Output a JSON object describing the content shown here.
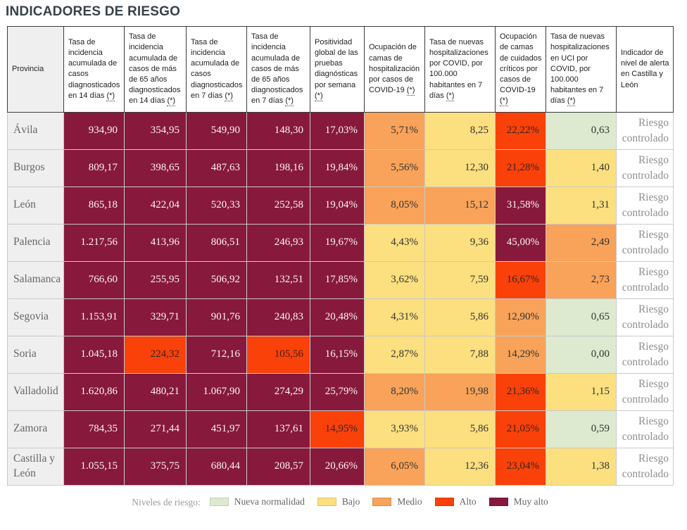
{
  "title": "INDICADORES DE RIESGO",
  "colors": {
    "nueva_normalidad": "#ddead0",
    "bajo": "#fcdf7e",
    "medio": "#f8a359",
    "alto": "#f94109",
    "muy_alto": "#87193c",
    "title_text": "#37424b",
    "province_text": "#666666",
    "alert_text": "#8f8f8f"
  },
  "chart_data": {
    "type": "table",
    "title": "INDICADORES DE RIESGO",
    "footnote_mark": "(*)",
    "columns": [
      {
        "label": "Provincia",
        "footnote": false
      },
      {
        "label": "Tasa de incidencia acumulada de casos diagnosticados en 14 días",
        "footnote": true
      },
      {
        "label": "Tasa de incidencia acumulada de casos de más de 65 años diagnosticados en 14 días",
        "footnote": true
      },
      {
        "label": "Tasa de incidencia acumulada de casos diagnosticados en 7 días",
        "footnote": true
      },
      {
        "label": "Tasa de incidencia acumulada de casos de más de 65 años diagnosticados en 7 días",
        "footnote": true
      },
      {
        "label": "Positividad global de las pruebas diagnósticas por semana",
        "footnote": true
      },
      {
        "label": "Ocupación de camas de hospitalización por casos de COVID-19",
        "footnote": true
      },
      {
        "label": "Tasa de nuevas hospitalizaciones por COVID, por 100.000 habitantes en 7 días",
        "footnote": true
      },
      {
        "label": "Ocupación de camas de cuidados críticos por casos de COVID-19",
        "footnote": true
      },
      {
        "label": "Tasa de nuevas hospitalizaciones en UCI por COVID, por 100.000 habitantes en 7 días",
        "footnote": true
      },
      {
        "label": "Indicador de nivel de alerta en Castilla y León",
        "footnote": false
      }
    ],
    "rows": [
      {
        "province": "Ávila",
        "values": [
          [
            "934,90",
            "muy_alto"
          ],
          [
            "354,95",
            "muy_alto"
          ],
          [
            "549,90",
            "muy_alto"
          ],
          [
            "148,30",
            "muy_alto"
          ],
          [
            "17,03%",
            "muy_alto"
          ],
          [
            "5,71%",
            "medio"
          ],
          [
            "8,25",
            "bajo"
          ],
          [
            "22,22%",
            "alto"
          ],
          [
            "0,63",
            "nueva_normalidad"
          ]
        ],
        "alert": "Riesgo controlado"
      },
      {
        "province": "Burgos",
        "values": [
          [
            "809,17",
            "muy_alto"
          ],
          [
            "398,65",
            "muy_alto"
          ],
          [
            "487,63",
            "muy_alto"
          ],
          [
            "198,16",
            "muy_alto"
          ],
          [
            "19,84%",
            "muy_alto"
          ],
          [
            "5,56%",
            "medio"
          ],
          [
            "12,30",
            "bajo"
          ],
          [
            "21,28%",
            "alto"
          ],
          [
            "1,40",
            "bajo"
          ]
        ],
        "alert": "Riesgo controlado"
      },
      {
        "province": "León",
        "values": [
          [
            "865,18",
            "muy_alto"
          ],
          [
            "422,04",
            "muy_alto"
          ],
          [
            "520,33",
            "muy_alto"
          ],
          [
            "252,58",
            "muy_alto"
          ],
          [
            "19,04%",
            "muy_alto"
          ],
          [
            "8,05%",
            "medio"
          ],
          [
            "15,12",
            "medio"
          ],
          [
            "31,58%",
            "muy_alto"
          ],
          [
            "1,31",
            "bajo"
          ]
        ],
        "alert": "Riesgo controlado"
      },
      {
        "province": "Palencia",
        "values": [
          [
            "1.217,56",
            "muy_alto"
          ],
          [
            "413,96",
            "muy_alto"
          ],
          [
            "806,51",
            "muy_alto"
          ],
          [
            "246,93",
            "muy_alto"
          ],
          [
            "19,67%",
            "muy_alto"
          ],
          [
            "4,43%",
            "bajo"
          ],
          [
            "9,36",
            "bajo"
          ],
          [
            "45,00%",
            "muy_alto"
          ],
          [
            "2,49",
            "medio"
          ]
        ],
        "alert": "Riesgo controlado"
      },
      {
        "province": "Salamanca",
        "values": [
          [
            "766,60",
            "muy_alto"
          ],
          [
            "255,95",
            "muy_alto"
          ],
          [
            "506,92",
            "muy_alto"
          ],
          [
            "132,51",
            "muy_alto"
          ],
          [
            "17,85%",
            "muy_alto"
          ],
          [
            "3,62%",
            "bajo"
          ],
          [
            "7,59",
            "bajo"
          ],
          [
            "16,67%",
            "alto"
          ],
          [
            "2,73",
            "medio"
          ]
        ],
        "alert": "Riesgo controlado"
      },
      {
        "province": "Segovia",
        "values": [
          [
            "1.153,91",
            "muy_alto"
          ],
          [
            "329,71",
            "muy_alto"
          ],
          [
            "901,76",
            "muy_alto"
          ],
          [
            "240,83",
            "muy_alto"
          ],
          [
            "20,48%",
            "muy_alto"
          ],
          [
            "4,31%",
            "bajo"
          ],
          [
            "5,86",
            "bajo"
          ],
          [
            "12,90%",
            "medio"
          ],
          [
            "0,65",
            "nueva_normalidad"
          ]
        ],
        "alert": "Riesgo controlado"
      },
      {
        "province": "Soria",
        "values": [
          [
            "1.045,18",
            "muy_alto"
          ],
          [
            "224,32",
            "alto"
          ],
          [
            "712,16",
            "muy_alto"
          ],
          [
            "105,56",
            "alto"
          ],
          [
            "16,15%",
            "muy_alto"
          ],
          [
            "2,87%",
            "bajo"
          ],
          [
            "7,88",
            "bajo"
          ],
          [
            "14,29%",
            "medio"
          ],
          [
            "0,00",
            "nueva_normalidad"
          ]
        ],
        "alert": "Riesgo controlado"
      },
      {
        "province": "Valladolid",
        "values": [
          [
            "1.620,86",
            "muy_alto"
          ],
          [
            "480,21",
            "muy_alto"
          ],
          [
            "1.067,90",
            "muy_alto"
          ],
          [
            "274,29",
            "muy_alto"
          ],
          [
            "25,79%",
            "muy_alto"
          ],
          [
            "8,20%",
            "medio"
          ],
          [
            "19,98",
            "medio"
          ],
          [
            "21,36%",
            "alto"
          ],
          [
            "1,15",
            "bajo"
          ]
        ],
        "alert": "Riesgo controlado"
      },
      {
        "province": "Zamora",
        "values": [
          [
            "784,35",
            "muy_alto"
          ],
          [
            "271,44",
            "muy_alto"
          ],
          [
            "451,97",
            "muy_alto"
          ],
          [
            "137,61",
            "muy_alto"
          ],
          [
            "14,95%",
            "alto"
          ],
          [
            "3,93%",
            "bajo"
          ],
          [
            "5,86",
            "bajo"
          ],
          [
            "21,05%",
            "alto"
          ],
          [
            "0,59",
            "nueva_normalidad"
          ]
        ],
        "alert": "Riesgo controlado"
      },
      {
        "province": "Castilla y León",
        "values": [
          [
            "1.055,15",
            "muy_alto"
          ],
          [
            "375,75",
            "muy_alto"
          ],
          [
            "680,44",
            "muy_alto"
          ],
          [
            "208,57",
            "muy_alto"
          ],
          [
            "20,66%",
            "muy_alto"
          ],
          [
            "6,05%",
            "medio"
          ],
          [
            "12,36",
            "bajo"
          ],
          [
            "23,04%",
            "alto"
          ],
          [
            "1,38",
            "bajo"
          ]
        ],
        "alert": "Riesgo controlado"
      }
    ]
  },
  "legend": {
    "label": "Niveles de riesgo:",
    "items": [
      {
        "label": "Nueva normalidad",
        "level": "nueva_normalidad"
      },
      {
        "label": "Bajo",
        "level": "bajo"
      },
      {
        "label": "Medio",
        "level": "medio"
      },
      {
        "label": "Alto",
        "level": "alto"
      },
      {
        "label": "Muy alto",
        "level": "muy_alto"
      }
    ]
  }
}
